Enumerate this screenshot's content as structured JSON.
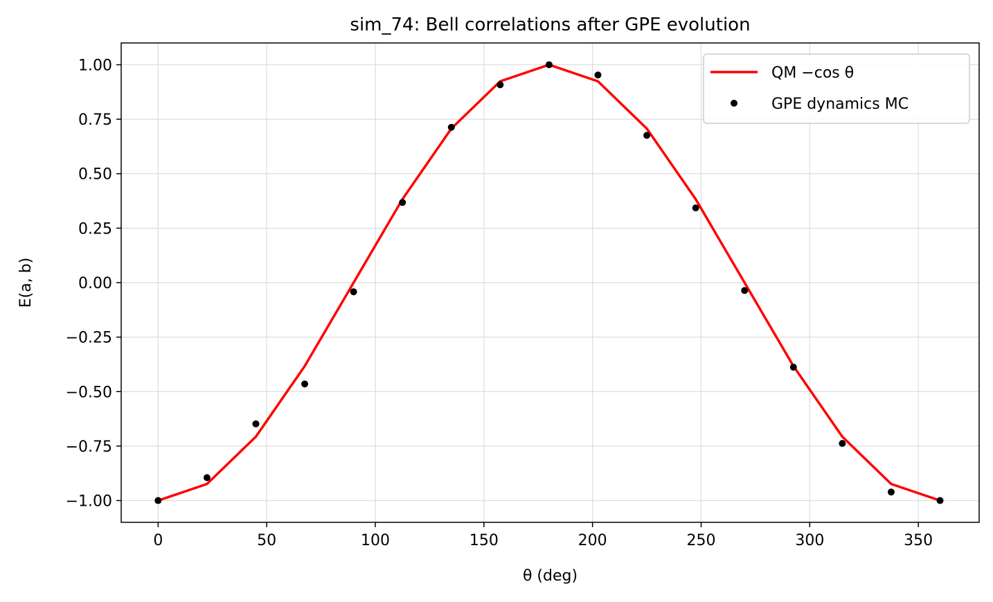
{
  "chart_data": {
    "type": "line",
    "title": "sim_74: Bell correlations after GPE evolution",
    "xlabel": "θ (deg)",
    "ylabel": "E(a, b)",
    "xlim": [
      -17,
      378
    ],
    "ylim": [
      -1.1,
      1.1
    ],
    "grid": true,
    "legend_position": "top-right",
    "x_ticks": [
      0,
      50,
      100,
      150,
      200,
      250,
      300,
      350
    ],
    "x_tick_labels": [
      "0",
      "50",
      "100",
      "150",
      "200",
      "250",
      "300",
      "350"
    ],
    "y_ticks": [
      1.0,
      0.75,
      0.5,
      0.25,
      0.0,
      -0.25,
      -0.5,
      -0.75,
      -1.0
    ],
    "y_tick_labels": [
      "1.00",
      "0.75",
      "0.50",
      "0.25",
      "0.00",
      "−0.25",
      "−0.50",
      "−0.75",
      "−1.00"
    ],
    "series": [
      {
        "name": "QM −cos θ",
        "kind": "line",
        "color": "#ff0000",
        "x": [
          0,
          22.5,
          45,
          67.5,
          90,
          112.5,
          135,
          157.5,
          180,
          202.5,
          225,
          247.5,
          270,
          292.5,
          315,
          337.5,
          360
        ],
        "y": [
          -1.0,
          -0.924,
          -0.707,
          -0.383,
          0.0,
          0.383,
          0.707,
          0.924,
          1.0,
          0.924,
          0.707,
          0.383,
          0.0,
          -0.383,
          -0.707,
          -0.924,
          -1.0
        ]
      },
      {
        "name": "GPE dynamics MC",
        "kind": "scatter",
        "color": "#000000",
        "x": [
          0,
          22.5,
          45,
          67.5,
          90,
          112.5,
          135,
          157.5,
          180,
          202.5,
          225,
          247.5,
          270,
          292.5,
          315,
          337.5,
          360
        ],
        "y": [
          -1.0,
          -0.895,
          -0.648,
          -0.465,
          -0.042,
          0.368,
          0.713,
          0.908,
          1.0,
          0.953,
          0.676,
          0.343,
          -0.036,
          -0.388,
          -0.738,
          -0.961,
          -1.0
        ]
      }
    ]
  }
}
